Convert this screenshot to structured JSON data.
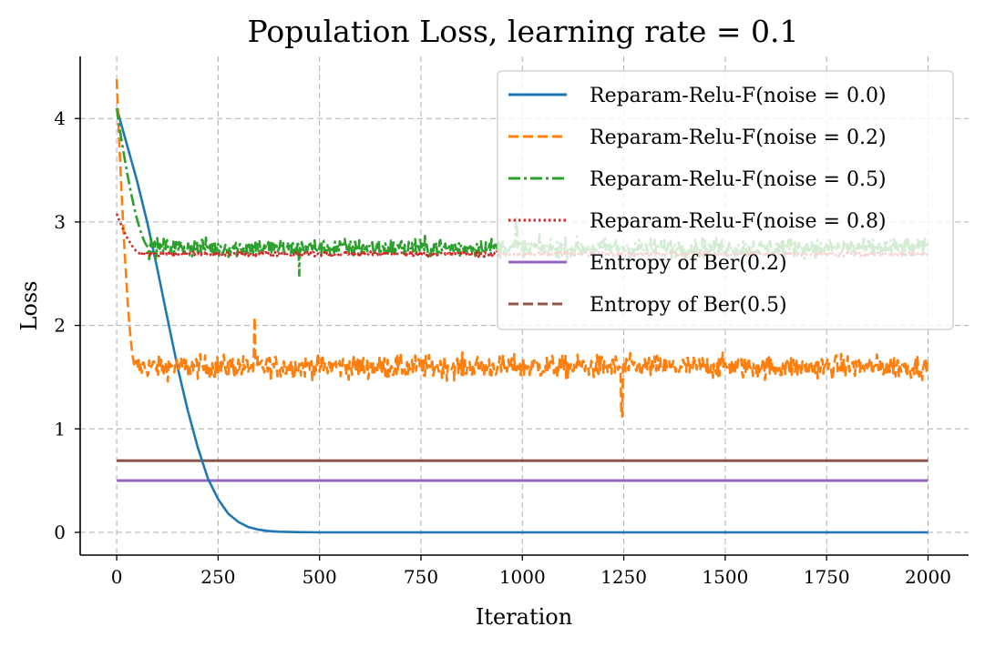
{
  "chart_data": {
    "type": "line",
    "title": "Population Loss, learning rate = 0.1",
    "xlabel": "Iteration",
    "ylabel": "Loss",
    "xlim": [
      -90,
      2100
    ],
    "ylim": [
      -0.22,
      4.6
    ],
    "xticks": [
      0,
      250,
      500,
      750,
      1000,
      1250,
      1500,
      1750,
      2000
    ],
    "yticks": [
      0,
      1,
      2,
      3,
      4
    ],
    "grid": true,
    "legend_position": "top-right",
    "series": [
      {
        "name": "Reparam-Relu-F(noise = 0.0)",
        "color": "#1f77b4",
        "style": "solid",
        "description_points": {
          "x": [
            0,
            25,
            50,
            75,
            100,
            125,
            150,
            175,
            200,
            225,
            250,
            275,
            300,
            325,
            350,
            375,
            400,
            450,
            500,
            600,
            700,
            800,
            1000,
            1250,
            1500,
            1750,
            2000
          ],
          "y": [
            4.1,
            3.75,
            3.4,
            3.0,
            2.55,
            2.07,
            1.6,
            1.18,
            0.82,
            0.52,
            0.32,
            0.18,
            0.1,
            0.05,
            0.025,
            0.012,
            0.006,
            0.002,
            0.0,
            0.0,
            0.0,
            0.0,
            0.0,
            0.0,
            0.0,
            0.0,
            0.0
          ]
        }
      },
      {
        "name": "Reparam-Relu-F(noise = 0.2)",
        "color": "#ff7f0e",
        "style": "dashed",
        "start": 4.38,
        "settle_iter": 45,
        "mean": 1.6,
        "noise": 0.11,
        "min_spike": {
          "x": 1245,
          "y": 1.12
        },
        "max_spike": {
          "x": 340,
          "y": 2.08
        }
      },
      {
        "name": "Reparam-Relu-F(noise = 0.5)",
        "color": "#2ca02c",
        "style": "dashdot",
        "start": 4.1,
        "settle_iter": 80,
        "mean": 2.75,
        "noise": 0.09,
        "max_spike": {
          "x": 985,
          "y": 3.05
        },
        "min_spike": {
          "x": 450,
          "y": 2.48
        }
      },
      {
        "name": "Reparam-Relu-F(noise = 0.8)",
        "color": "#d62728",
        "style": "dotted",
        "start": 3.08,
        "settle_iter": 60,
        "mean": 2.69,
        "noise": 0.022
      },
      {
        "name": "Entropy of Ber(0.2)",
        "color": "#9467bd",
        "style": "solid",
        "value": 0.5004
      },
      {
        "name": "Entropy of Ber(0.5)",
        "color": "#8c564b",
        "style": "dashed",
        "value": 0.6931
      }
    ]
  }
}
